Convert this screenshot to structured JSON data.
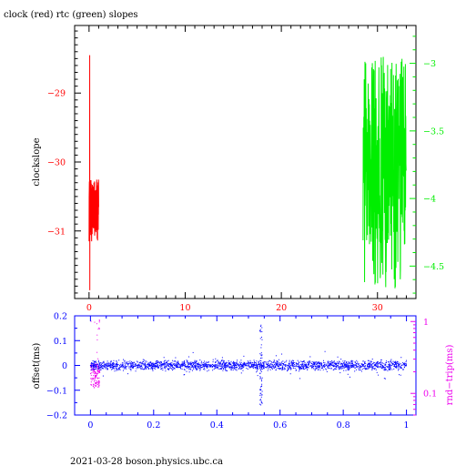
{
  "title": "clock (red) rtc (green) slopes",
  "footer": "2021-03-28  boson.physics.ubc.ca",
  "colors": {
    "axes": "#000000",
    "clock": "#ff0000",
    "rtc": "#00ee00",
    "offset": "#0000ff",
    "rndtrip": "#ee00ee"
  },
  "chart_data": [
    {
      "type": "line",
      "title": "clock (red) rtc (green) slopes",
      "ylabel": "clockslope",
      "xlim": [
        -1.5,
        34
      ],
      "ylim_left": [
        -31.98,
        -28.02
      ],
      "ylim_right": [
        -4.74,
        -2.72
      ],
      "x_ticks": [
        0,
        10,
        20,
        30
      ],
      "x_tick_labels": [
        "0",
        "10",
        "20",
        "30"
      ],
      "y_left_ticks": [
        -29,
        -30,
        -31
      ],
      "y_left_tick_labels": [
        "−29",
        "−30",
        "−31"
      ],
      "y_right_ticks": [
        -3,
        -3.5,
        -4,
        -4.5
      ],
      "y_right_tick_labels": [
        "−3",
        "−3.5",
        "−4",
        "−4.5"
      ],
      "series": [
        {
          "color": "red",
          "axis": "left",
          "x_range": [
            0,
            1
          ],
          "y_range": [
            -31.86,
            -28.45
          ]
        },
        {
          "color": "green",
          "axis": "right",
          "x_range": [
            28.5,
            33
          ],
          "y_range": [
            -4.67,
            -2.88
          ]
        }
      ]
    },
    {
      "type": "scatter",
      "xlim": [
        -0.05,
        1.03
      ],
      "ylim_left": [
        -0.2,
        0.2
      ],
      "ylim_right_log": [
        0.05,
        1.2
      ],
      "ylabel_left": "offset(ms)",
      "ylabel_right": "rnd−trip(ms)",
      "x_ticks": [
        0,
        0.2,
        0.4,
        0.6,
        0.8,
        1
      ],
      "x_tick_labels": [
        "0",
        "0.2",
        "0.4",
        "0.6",
        "0.8",
        "1"
      ],
      "y_left_ticks": [
        0.2,
        0.1,
        0,
        -0.1,
        -0.2
      ],
      "y_left_tick_labels": [
        "0.2",
        "0.1",
        "0",
        "−0.1",
        "−0.2"
      ],
      "y_right_ticks": [
        1,
        0.1
      ],
      "y_right_tick_labels": [
        "1",
        "0.1"
      ],
      "series": [
        {
          "color": "blue",
          "axis": "left",
          "x_range": [
            0,
            1
          ],
          "typical_offset_range": [
            -0.02,
            0.02
          ],
          "spike": {
            "x": 0.54,
            "y_range": [
              -0.16,
              0.17
            ]
          }
        },
        {
          "color": "magenta",
          "axis": "right",
          "x_range": [
            0,
            0.03
          ],
          "y_range": [
            0.12,
            1.1
          ]
        }
      ]
    }
  ]
}
